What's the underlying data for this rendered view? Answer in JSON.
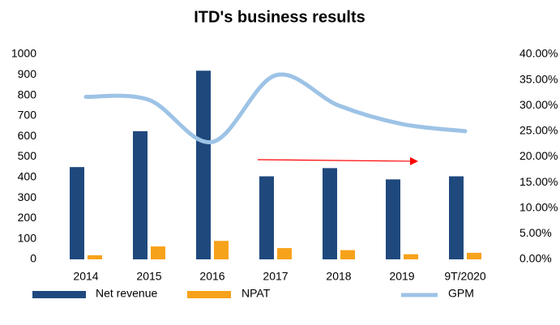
{
  "chart_data": {
    "type": "bar",
    "title": "ITD's business results",
    "categories": [
      "2014",
      "2015",
      "2016",
      "2017",
      "2018",
      "2019",
      "9T/2020"
    ],
    "series": [
      {
        "name": "Net revenue",
        "color": "#1f497d",
        "values": [
          450,
          625,
          920,
          405,
          445,
          390,
          405
        ]
      },
      {
        "name": "NPAT",
        "color": "#f7a21b",
        "values": [
          20,
          63,
          90,
          55,
          45,
          25,
          32
        ]
      },
      {
        "name": "GPM",
        "color": "#9dc3e6",
        "type": "line",
        "axis": "y2",
        "values": [
          31.7,
          31.1,
          22.9,
          35.9,
          30.0,
          26.4,
          25.0
        ]
      }
    ],
    "ylim": [
      0,
      1000
    ],
    "yticks": [
      0,
      100,
      200,
      300,
      400,
      500,
      600,
      700,
      800,
      900,
      1000
    ],
    "y2lim": [
      0,
      40
    ],
    "y2ticks": [
      {
        "value": 0,
        "label": "0.00%"
      },
      {
        "value": 5,
        "label": "5.00%"
      },
      {
        "value": 10,
        "label": "10.00%"
      },
      {
        "value": 15,
        "label": "15.00%"
      },
      {
        "value": 20,
        "label": "20.00%"
      },
      {
        "value": 25,
        "label": "25.00%"
      },
      {
        "value": 30,
        "label": "30.00%"
      },
      {
        "value": 35,
        "label": "35.00%"
      },
      {
        "value": 40,
        "label": "40.00%"
      }
    ],
    "grid": false,
    "legend": "bottom"
  }
}
